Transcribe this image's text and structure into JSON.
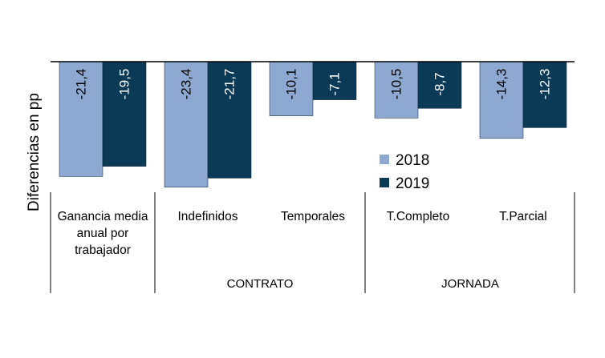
{
  "chart_data": {
    "type": "bar",
    "ylabel": "Diferencias en pp",
    "ylim": [
      -25,
      0
    ],
    "categories": [
      "Ganancia media anual por trabajador",
      "Indefinidos",
      "Temporales",
      "T.Completo",
      "T.Parcial"
    ],
    "category_lines": [
      [
        "Ganancia media",
        "anual por",
        "trabajador"
      ],
      [
        "Indefinidos"
      ],
      [
        "Temporales"
      ],
      [
        "T.Completo"
      ],
      [
        "T.Parcial"
      ]
    ],
    "series": [
      {
        "name": "2018",
        "values": [
          -21.4,
          -23.4,
          -10.1,
          -10.5,
          -14.3
        ],
        "labels": [
          "-21,4",
          "-23,4",
          "-10,1",
          "-10,5",
          "-14,3"
        ],
        "color": "#8ea9d1"
      },
      {
        "name": "2019",
        "values": [
          -19.5,
          -21.7,
          -7.1,
          -8.7,
          -12.3
        ],
        "labels": [
          "-19,5",
          "-21,7",
          "-7,1",
          "-8,7",
          "-12,3"
        ],
        "color": "#0b3a57"
      }
    ],
    "groups": [
      {
        "label": "CONTRATO",
        "categories": [
          1,
          2
        ]
      },
      {
        "label": "JORNADA",
        "categories": [
          3,
          4
        ]
      }
    ],
    "legend_position": "inside-right"
  }
}
